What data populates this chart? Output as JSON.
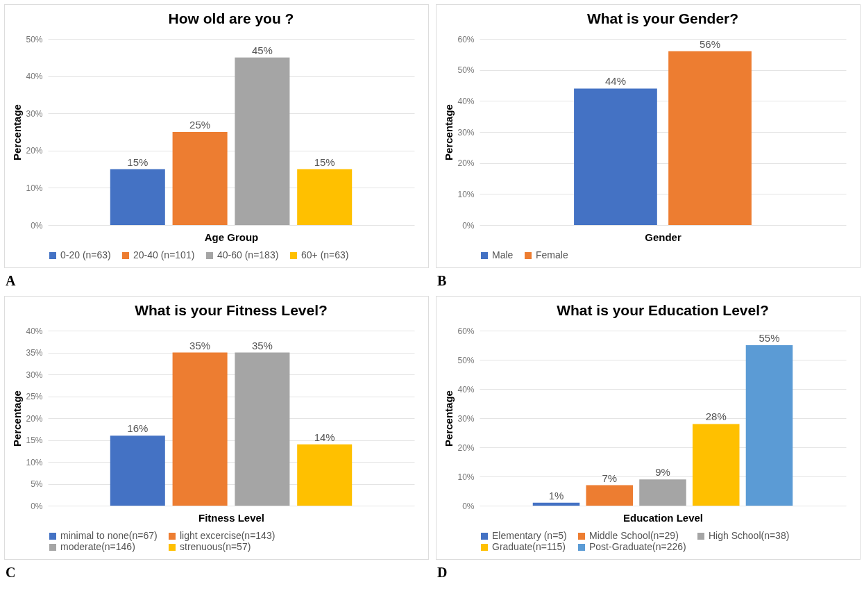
{
  "chart_data": [
    {
      "type": "bar",
      "title": "How old are you ?",
      "xlabel": "Age Group",
      "ylabel": "Percentage",
      "categories": [
        null
      ],
      "series": [
        {
          "name": "0-20 (n=63)",
          "color": "#4472c4",
          "values": [
            15
          ],
          "value_labels": [
            "15%"
          ]
        },
        {
          "name": "20-40 (n=101)",
          "color": "#ed7d31",
          "values": [
            25
          ],
          "value_labels": [
            "25%"
          ]
        },
        {
          "name": "40-60 (n=183)",
          "color": "#a5a5a5",
          "values": [
            45
          ],
          "value_labels": [
            "45%"
          ]
        },
        {
          "name": "60+ (n=63)",
          "color": "#ffc000",
          "values": [
            15
          ],
          "value_labels": [
            "15%"
          ]
        }
      ],
      "ylim": [
        0,
        50
      ],
      "yticks": [
        {
          "value": 0,
          "label": "0%"
        },
        {
          "value": 10,
          "label": "10%"
        },
        {
          "value": 20,
          "label": "20%"
        },
        {
          "value": 30,
          "label": "30%"
        },
        {
          "value": 40,
          "label": "40%"
        },
        {
          "value": 50,
          "label": "50%"
        }
      ],
      "grid": "y",
      "legend": "bottom",
      "tick_labels": "y",
      "annotations": [
        "A"
      ]
    },
    {
      "type": "bar",
      "title": "What is your Gender?",
      "xlabel": "Gender",
      "ylabel": "Percentage",
      "categories": [
        null
      ],
      "series": [
        {
          "name": "Male",
          "color": "#4472c4",
          "values": [
            44
          ],
          "value_labels": [
            "44%"
          ]
        },
        {
          "name": "Female",
          "color": "#ed7d31",
          "values": [
            56
          ],
          "value_labels": [
            "56%"
          ]
        }
      ],
      "ylim": [
        0,
        60
      ],
      "yticks": [
        {
          "value": 0,
          "label": "0%"
        },
        {
          "value": 10,
          "label": "10%"
        },
        {
          "value": 20,
          "label": "20%"
        },
        {
          "value": 30,
          "label": "30%"
        },
        {
          "value": 40,
          "label": "40%"
        },
        {
          "value": 50,
          "label": "50%"
        },
        {
          "value": 60,
          "label": "60%"
        }
      ],
      "grid": "y",
      "legend": "bottom",
      "tick_labels": "y",
      "annotations": [
        "B"
      ]
    },
    {
      "type": "bar",
      "title": "What is your Fitness Level?",
      "xlabel": "Fitness Level",
      "ylabel": "Percentage",
      "categories": [
        null
      ],
      "series": [
        {
          "name": "minimal to none(n=67)",
          "color": "#4472c4",
          "values": [
            16
          ],
          "value_labels": [
            "16%"
          ]
        },
        {
          "name": "light excercise(n=143)",
          "color": "#ed7d31",
          "values": [
            35
          ],
          "value_labels": [
            "35%"
          ]
        },
        {
          "name": "moderate(n=146)",
          "color": "#a5a5a5",
          "values": [
            35
          ],
          "value_labels": [
            "35%"
          ]
        },
        {
          "name": "strenuous(n=57)",
          "color": "#ffc000",
          "values": [
            14
          ],
          "value_labels": [
            "14%"
          ]
        }
      ],
      "ylim": [
        0,
        40
      ],
      "yticks": [
        {
          "value": 0,
          "label": "0%"
        },
        {
          "value": 5,
          "label": "5%"
        },
        {
          "value": 10,
          "label": "10%"
        },
        {
          "value": 15,
          "label": "15%"
        },
        {
          "value": 20,
          "label": "20%"
        },
        {
          "value": 25,
          "label": "25%"
        },
        {
          "value": 30,
          "label": "30%"
        },
        {
          "value": 35,
          "label": "35%"
        },
        {
          "value": 40,
          "label": "40%"
        }
      ],
      "grid": "y",
      "legend": "bottom",
      "tick_labels": "y",
      "annotations": [
        "C"
      ]
    },
    {
      "type": "bar",
      "title": "What is your Education Level?",
      "xlabel": "Education Level",
      "ylabel": "Percentage",
      "categories": [
        null
      ],
      "series": [
        {
          "name": "Elementary (n=5)",
          "color": "#4472c4",
          "values": [
            1
          ],
          "value_labels": [
            "1%"
          ]
        },
        {
          "name": "Middle School(n=29)",
          "color": "#ed7d31",
          "values": [
            7
          ],
          "value_labels": [
            "7%"
          ]
        },
        {
          "name": "High School(n=38)",
          "color": "#a5a5a5",
          "values": [
            9
          ],
          "value_labels": [
            "9%"
          ]
        },
        {
          "name": "Graduate(n=115)",
          "color": "#ffc000",
          "values": [
            28
          ],
          "value_labels": [
            "28%"
          ]
        },
        {
          "name": "Post-Graduate(n=226)",
          "color": "#5b9bd5",
          "values": [
            55
          ],
          "value_labels": [
            "55%"
          ]
        }
      ],
      "ylim": [
        0,
        60
      ],
      "yticks": [
        {
          "value": 0,
          "label": "0%"
        },
        {
          "value": 10,
          "label": "10%"
        },
        {
          "value": 20,
          "label": "20%"
        },
        {
          "value": 30,
          "label": "30%"
        },
        {
          "value": 40,
          "label": "40%"
        },
        {
          "value": 50,
          "label": "50%"
        },
        {
          "value": 60,
          "label": "60%"
        }
      ],
      "grid": "y",
      "legend": "bottom",
      "tick_labels": "y",
      "annotations": [
        "D"
      ]
    }
  ]
}
